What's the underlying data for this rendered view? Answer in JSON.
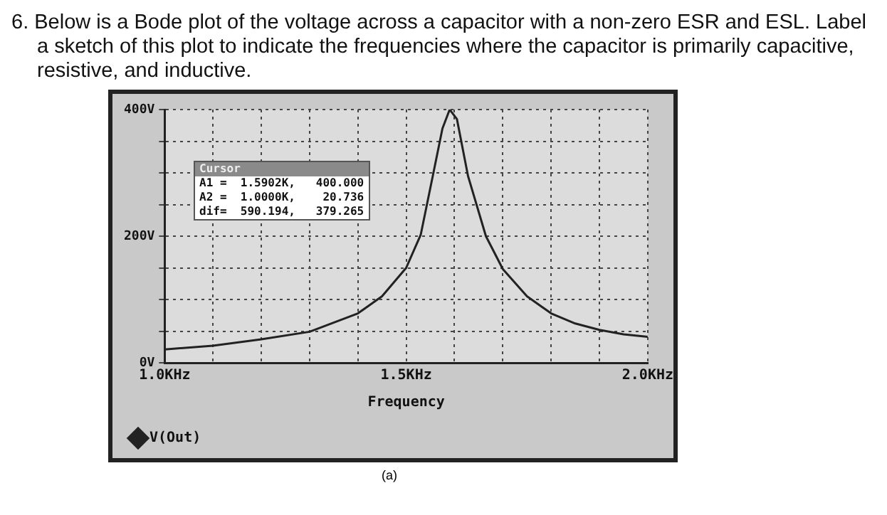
{
  "chart_data": {
    "type": "line",
    "title": "6. Below is a Bode plot of the voltage across a capacitor with a non-zero ESR and ESL. Label a sketch of this plot to indicate the frequencies where the capacitor is primarily capacitive, resistive, and inductive.",
    "xlabel": "Frequency",
    "annotations": [
      "Cursor",
      "A1 =  1.5902K,   400.000",
      "A2 =  1.0000K,    20.736",
      "dif=  590.194,   379.265",
      "(a)"
    ],
    "series": [
      {
        "name": "V(Out)",
        "color": "#222222",
        "x": [
          1.0,
          1.1,
          1.2,
          1.3,
          1.4,
          1.45,
          1.5,
          1.53,
          1.555,
          1.575,
          1.59,
          1.605,
          1.628,
          1.665,
          1.7,
          1.75,
          1.8,
          1.85,
          1.9,
          1.95,
          2.0
        ],
        "values": [
          21,
          27,
          37,
          49,
          78,
          105,
          150,
          202,
          295,
          370,
          400,
          385,
          295,
          200,
          148,
          105,
          78,
          62,
          52,
          45,
          41
        ]
      }
    ],
    "xlim": [
      1.0,
      2.0
    ],
    "xticks": [
      {
        "value": 1.0,
        "label": "1.0KHz"
      },
      {
        "value": 1.1,
        "label": null
      },
      {
        "value": 1.2,
        "label": null
      },
      {
        "value": 1.3,
        "label": null
      },
      {
        "value": 1.4,
        "label": null
      },
      {
        "value": 1.5,
        "label": "1.5KHz"
      },
      {
        "value": 1.6,
        "label": null
      },
      {
        "value": 1.7,
        "label": null
      },
      {
        "value": 1.8,
        "label": null
      },
      {
        "value": 1.9,
        "label": null
      },
      {
        "value": 2.0,
        "label": "2.0KHz"
      }
    ],
    "ylim": [
      0,
      400
    ],
    "yticks": [
      {
        "value": 0,
        "label": "0V"
      },
      {
        "value": 50,
        "label": null
      },
      {
        "value": 100,
        "label": null
      },
      {
        "value": 150,
        "label": null
      },
      {
        "value": 200,
        "label": "200V"
      },
      {
        "value": 250,
        "label": null
      },
      {
        "value": 300,
        "label": null
      },
      {
        "value": 350,
        "label": null
      },
      {
        "value": 400,
        "label": "400V"
      }
    ],
    "grid": true,
    "legend": "bottom left",
    "marker": "none",
    "line_style": "solid"
  }
}
